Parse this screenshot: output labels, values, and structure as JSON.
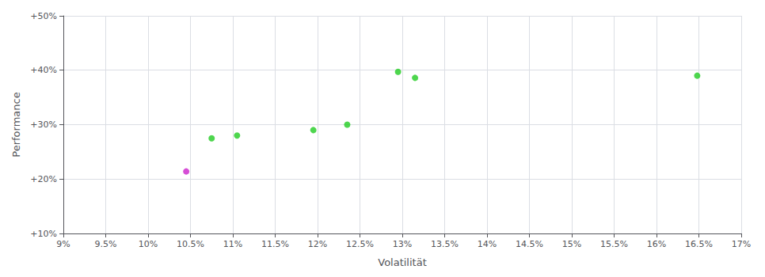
{
  "chart_data": {
    "type": "scatter",
    "xlabel": "Volatilität",
    "ylabel": "Performance",
    "xlim": [
      0.09,
      0.17
    ],
    "ylim": [
      0.1,
      0.5
    ],
    "xticks": [
      {
        "value": 0.09,
        "label": "9%"
      },
      {
        "value": 0.095,
        "label": "9.5%"
      },
      {
        "value": 0.1,
        "label": "10%"
      },
      {
        "value": 0.105,
        "label": "10.5%"
      },
      {
        "value": 0.11,
        "label": "11%"
      },
      {
        "value": 0.115,
        "label": "11.5%"
      },
      {
        "value": 0.12,
        "label": "12%"
      },
      {
        "value": 0.125,
        "label": "12.5%"
      },
      {
        "value": 0.13,
        "label": "13%"
      },
      {
        "value": 0.135,
        "label": "13.5%"
      },
      {
        "value": 0.14,
        "label": "14%"
      },
      {
        "value": 0.145,
        "label": "14.5%"
      },
      {
        "value": 0.15,
        "label": "15%"
      },
      {
        "value": 0.155,
        "label": "15.5%"
      },
      {
        "value": 0.16,
        "label": "16%"
      },
      {
        "value": 0.165,
        "label": "16.5%"
      },
      {
        "value": 0.17,
        "label": "17%"
      }
    ],
    "yticks": [
      {
        "value": 0.1,
        "label": "+10%"
      },
      {
        "value": 0.2,
        "label": "+20%"
      },
      {
        "value": 0.3,
        "label": "+30%"
      },
      {
        "value": 0.4,
        "label": "+40%"
      },
      {
        "value": 0.5,
        "label": "+50%"
      }
    ],
    "grid": true,
    "series": [
      {
        "color": "#22cc22",
        "values": [
          [
            0.1075,
            0.275
          ],
          [
            0.1105,
            0.28
          ],
          [
            0.1195,
            0.29
          ],
          [
            0.1235,
            0.3
          ],
          [
            0.1295,
            0.397
          ],
          [
            0.1315,
            0.386
          ],
          [
            0.1648,
            0.39
          ]
        ]
      },
      {
        "color": "#cc22cc",
        "values": [
          [
            0.1045,
            0.214
          ]
        ]
      }
    ]
  }
}
